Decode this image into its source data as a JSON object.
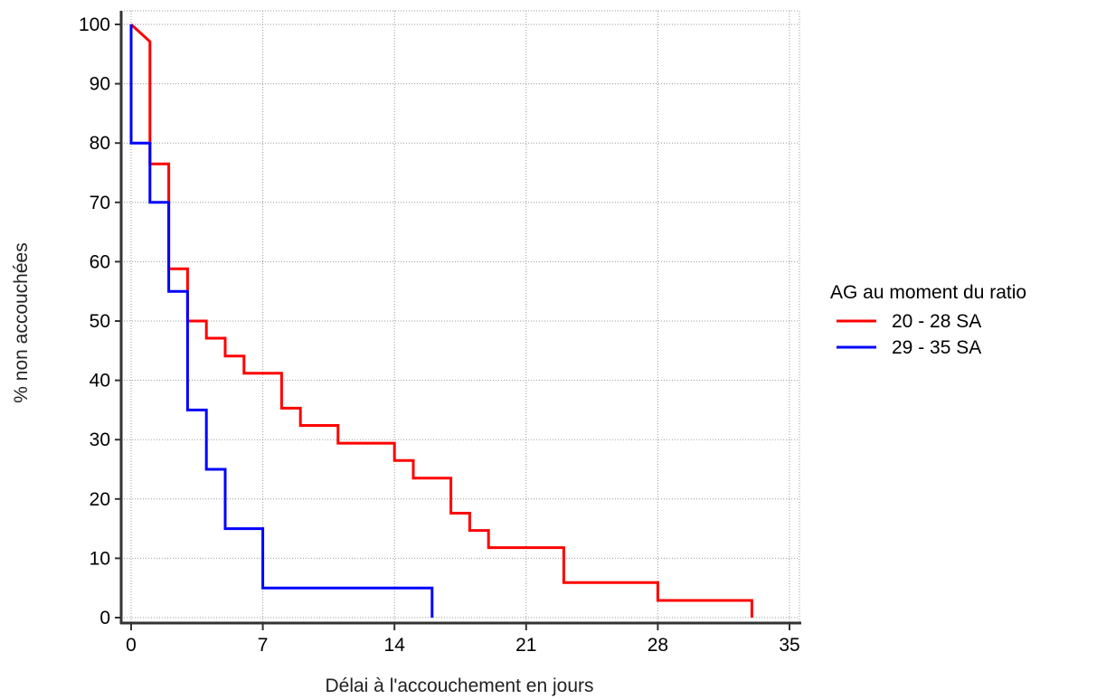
{
  "chart_data": {
    "type": "line",
    "subtype": "step (Kaplan-Meier survival curve)",
    "title": "",
    "xlabel": "Délai à l'accouchement en jours",
    "ylabel": "% non accouchées",
    "xlim": [
      0,
      35
    ],
    "ylim": [
      0,
      100
    ],
    "xticks": [
      0,
      7,
      14,
      21,
      28,
      35
    ],
    "yticks": [
      0,
      10,
      20,
      30,
      40,
      50,
      60,
      70,
      80,
      90,
      100
    ],
    "grid": true,
    "legend": {
      "title": "AG au moment du ratio",
      "position": "right"
    },
    "series": [
      {
        "name": "20 - 28 SA",
        "color": "#ff0000",
        "points": [
          [
            0,
            100
          ],
          [
            1,
            97.1
          ],
          [
            1,
            76.5
          ],
          [
            2,
            76.5
          ],
          [
            2,
            58.8
          ],
          [
            3,
            58.8
          ],
          [
            3,
            50.0
          ],
          [
            4,
            50.0
          ],
          [
            4,
            47.1
          ],
          [
            5,
            47.1
          ],
          [
            5,
            44.1
          ],
          [
            6,
            44.1
          ],
          [
            6,
            41.2
          ],
          [
            8,
            41.2
          ],
          [
            8,
            35.3
          ],
          [
            9,
            35.3
          ],
          [
            9,
            32.4
          ],
          [
            11,
            32.4
          ],
          [
            11,
            29.4
          ],
          [
            14,
            29.4
          ],
          [
            14,
            26.5
          ],
          [
            15,
            26.5
          ],
          [
            15,
            23.5
          ],
          [
            17,
            23.5
          ],
          [
            17,
            17.6
          ],
          [
            18,
            17.6
          ],
          [
            18,
            14.7
          ],
          [
            19,
            14.7
          ],
          [
            19,
            11.8
          ],
          [
            23,
            11.8
          ],
          [
            23,
            5.9
          ],
          [
            28,
            5.9
          ],
          [
            28,
            2.9
          ],
          [
            33,
            2.9
          ],
          [
            33,
            0
          ]
        ]
      },
      {
        "name": "29 - 35 SA",
        "color": "#0000ff",
        "points": [
          [
            0,
            100
          ],
          [
            0,
            80
          ],
          [
            1,
            80
          ],
          [
            1,
            70
          ],
          [
            2,
            70
          ],
          [
            2,
            55
          ],
          [
            3,
            55
          ],
          [
            3,
            35
          ],
          [
            4,
            35
          ],
          [
            4,
            25
          ],
          [
            5,
            25
          ],
          [
            5,
            15
          ],
          [
            7,
            15
          ],
          [
            7,
            5
          ],
          [
            16,
            5
          ],
          [
            16,
            0
          ]
        ]
      }
    ]
  }
}
